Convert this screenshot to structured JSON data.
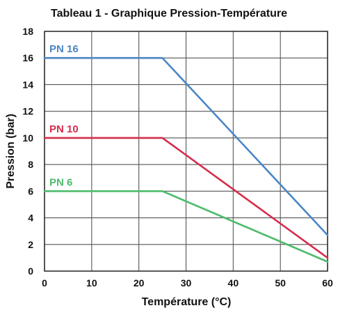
{
  "chart_data": {
    "type": "line",
    "title": "Tableau 1 - Graphique Pression-Température",
    "xlabel": "Température (°C)",
    "ylabel": "Pression (bar)",
    "xlim": [
      0,
      60
    ],
    "ylim": [
      0,
      18
    ],
    "xticks": [
      0,
      10,
      20,
      30,
      40,
      50,
      60
    ],
    "yticks": [
      0,
      2,
      4,
      6,
      8,
      10,
      12,
      14,
      16,
      18
    ],
    "grid": true,
    "legend": "inline labels on lines",
    "series": [
      {
        "name": "PN 16",
        "color": "#4a86c5",
        "x": [
          0,
          25,
          60
        ],
        "y": [
          16,
          16,
          2.7
        ]
      },
      {
        "name": "PN 10",
        "color": "#d62c4a",
        "x": [
          0,
          25,
          60
        ],
        "y": [
          10,
          10,
          1.0
        ]
      },
      {
        "name": "PN 6",
        "color": "#4dbb6b",
        "x": [
          0,
          25,
          60
        ],
        "y": [
          6,
          6,
          0.7
        ]
      }
    ]
  }
}
